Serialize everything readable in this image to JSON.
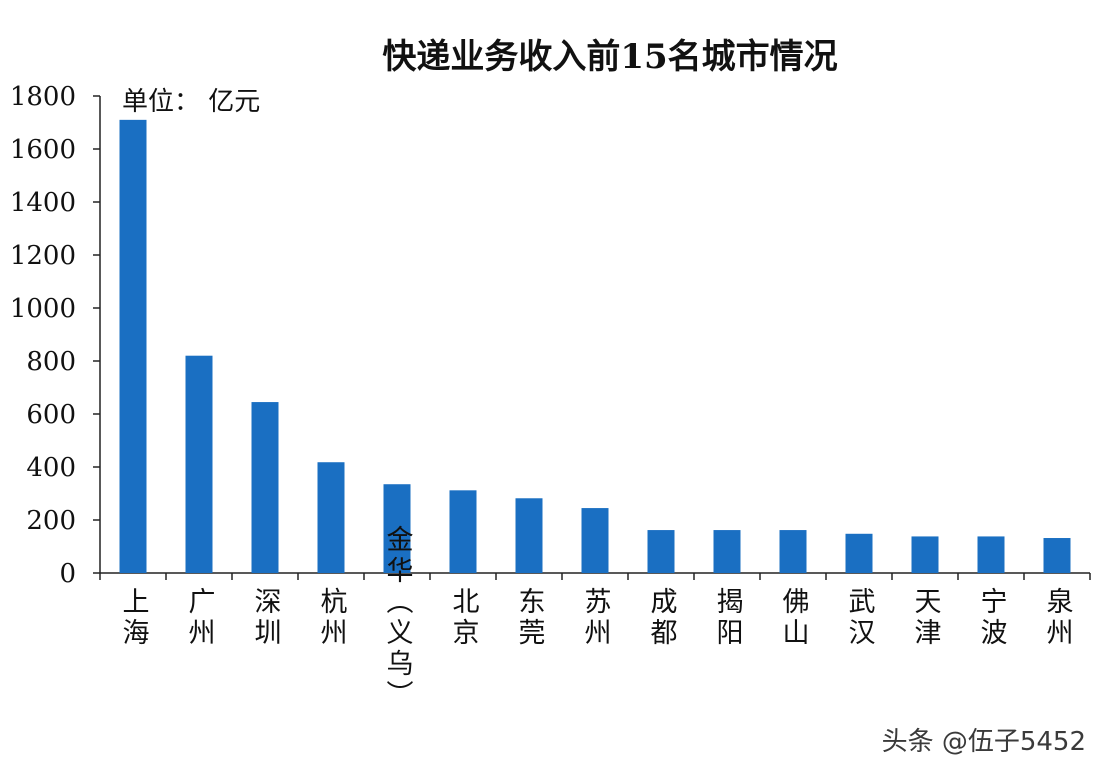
{
  "chart_data": {
    "type": "bar",
    "title": "快递业务收入前15名城市情况",
    "unit_label": "单位： 亿元",
    "categories": [
      "上海",
      "广州",
      "深圳",
      "杭州",
      "金华（义乌）",
      "北京",
      "东莞",
      "苏州",
      "成都",
      "揭阳",
      "佛山",
      "武汉",
      "天津",
      "宁波",
      "泉州"
    ],
    "values": [
      1710,
      820,
      645,
      418,
      335,
      312,
      282,
      245,
      162,
      162,
      162,
      148,
      138,
      138,
      132
    ],
    "ylim": [
      0,
      1800
    ],
    "yticks": [
      "0",
      "200",
      "400",
      "600",
      "800",
      "1000",
      "1200",
      "1400",
      "1600",
      "1800"
    ],
    "xlabel": "",
    "ylabel": "",
    "bar_color": "#1a6fc2",
    "grid": false,
    "legend": "none"
  },
  "watermark": "头条 @伍子5452"
}
